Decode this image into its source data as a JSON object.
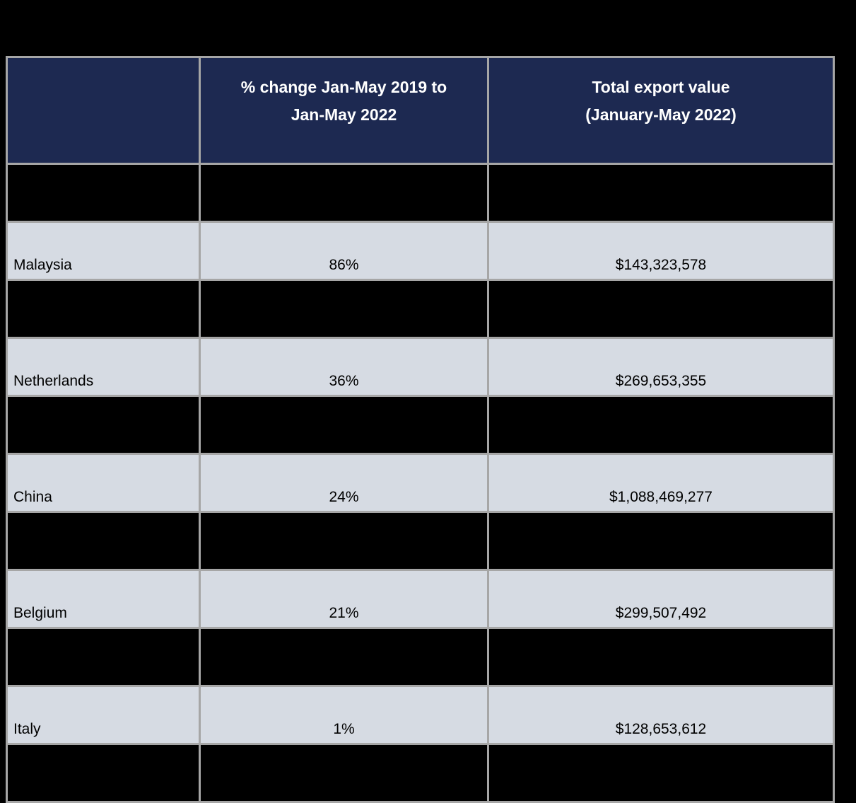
{
  "page": {
    "background_color": "#000000"
  },
  "colors": {
    "header_bg": "#1d2951",
    "header_text": "#ffffff",
    "data_row_bg": "#d6dbe3",
    "hidden_row_bg": "#000000",
    "body_text": "#000000",
    "grid_border": "#a6a6a6"
  },
  "table": {
    "header": {
      "country": "",
      "change": "% change Jan-May 2019 to\nJan-May 2022",
      "value": "Total export value\n(January-May 2022)"
    },
    "rows": [
      {
        "type": "hidden",
        "country": "",
        "change": "",
        "value": ""
      },
      {
        "type": "data",
        "country": "Malaysia",
        "change": "86%",
        "value": "$143,323,578"
      },
      {
        "type": "hidden",
        "country": "",
        "change": "",
        "value": ""
      },
      {
        "type": "data",
        "country": "Netherlands",
        "change": "36%",
        "value": "$269,653,355"
      },
      {
        "type": "hidden",
        "country": "",
        "change": "",
        "value": ""
      },
      {
        "type": "data",
        "country": "China",
        "change": "24%",
        "value": "$1,088,469,277"
      },
      {
        "type": "hidden",
        "country": "",
        "change": "",
        "value": ""
      },
      {
        "type": "data",
        "country": "Belgium",
        "change": "21%",
        "value": "$299,507,492"
      },
      {
        "type": "hidden",
        "country": "",
        "change": "",
        "value": ""
      },
      {
        "type": "data",
        "country": "Italy",
        "change": "1%",
        "value": "$128,653,612"
      },
      {
        "type": "hidden",
        "country": "",
        "change": "",
        "value": ""
      }
    ]
  },
  "chart_data": {
    "type": "table",
    "title": "",
    "columns": [
      "",
      "% change Jan-May 2019 to Jan-May 2022",
      "Total export value (January-May 2022)"
    ],
    "rows": [
      [
        "Malaysia",
        "86%",
        "$143,323,578"
      ],
      [
        "Netherlands",
        "36%",
        "$269,653,355"
      ],
      [
        "China",
        "24%",
        "$1,088,469,277"
      ],
      [
        "Belgium",
        "21%",
        "$299,507,492"
      ],
      [
        "Italy",
        "1%",
        "$128,653,612"
      ]
    ],
    "notes": "Rows between data rows are filled solid black with no visible content; table sits on a black page background."
  }
}
